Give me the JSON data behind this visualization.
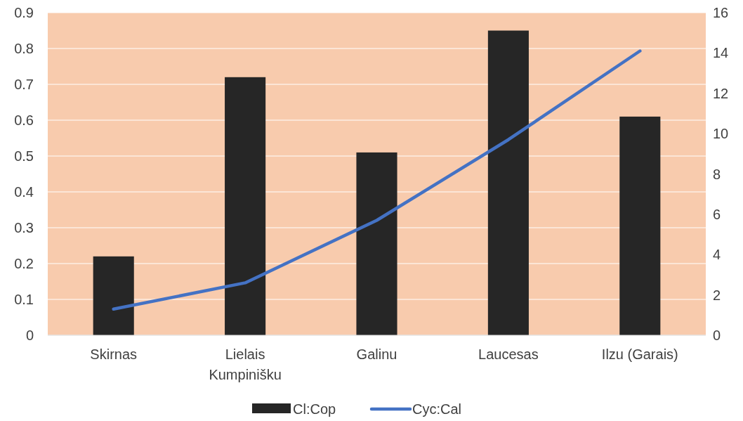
{
  "chart_data": {
    "type": "bar",
    "categories": [
      "Skirnas",
      "Lielais Kumpinišku",
      "Galinu",
      "Laucesas",
      "Ilzu (Garais)"
    ],
    "series": [
      {
        "name": "Cl:Cop",
        "color": "#262626",
        "values": [
          0.22,
          0.72,
          0.51,
          0.85,
          0.61
        ]
      },
      {
        "name": "Cyc:Cal",
        "type": "line",
        "axis": "y2",
        "color": "#4472c4",
        "values": [
          1.3,
          2.6,
          5.7,
          9.7,
          14.1
        ]
      }
    ],
    "ylim": [
      0,
      0.9
    ],
    "yticks": [
      0,
      0.1,
      0.2,
      0.3,
      0.4,
      0.5,
      0.6,
      0.7,
      0.8,
      0.9
    ],
    "y2lim": [
      0,
      16
    ],
    "y2ticks": [
      0,
      2,
      4,
      6,
      8,
      10,
      12,
      14,
      16
    ],
    "grid": "y",
    "legend": "bottom",
    "marker": "none",
    "line_style": "solid"
  }
}
